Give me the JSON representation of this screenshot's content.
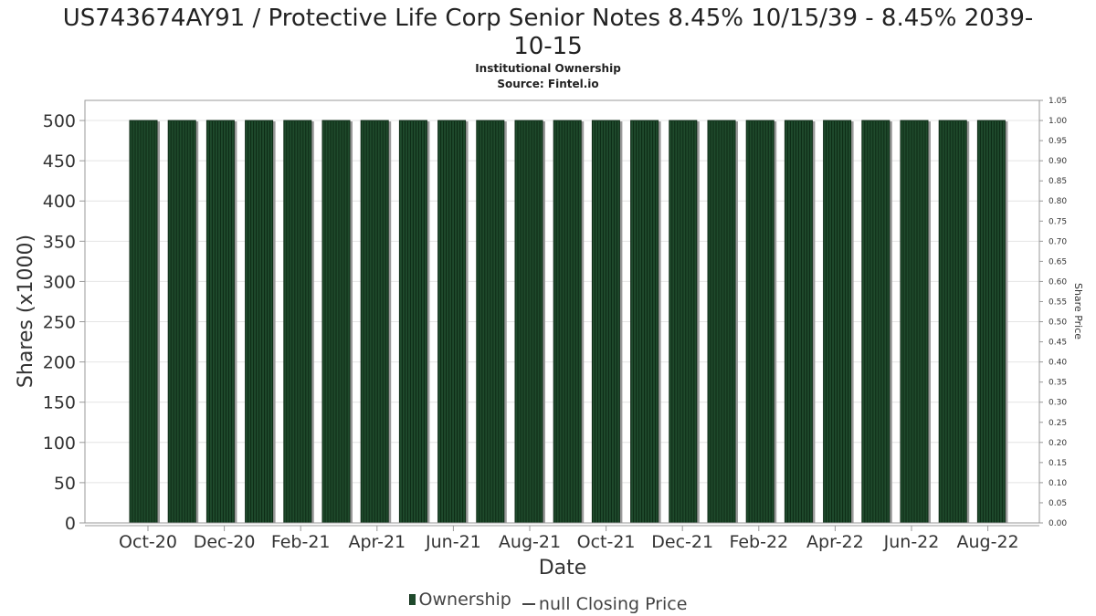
{
  "chart_data": {
    "type": "bar",
    "title": "US743674AY91 / Protective Life Corp Senior Notes 8.45% 10/15/39 - 8.45% 2039-10-15",
    "subtitle": "Institutional Ownership",
    "source": "Source: Fintel.io",
    "xlabel": "Date",
    "ylabel": "Shares (x1000)",
    "y2label": "Share Price",
    "ylim": [
      0,
      525
    ],
    "y2lim": [
      0,
      1.05
    ],
    "yticks": [
      "0",
      "50",
      "100",
      "150",
      "200",
      "250",
      "300",
      "350",
      "400",
      "450",
      "500"
    ],
    "y2ticks": [
      "0.00",
      "0.05",
      "0.10",
      "0.15",
      "0.20",
      "0.25",
      "0.30",
      "0.35",
      "0.40",
      "0.45",
      "0.50",
      "0.55",
      "0.60",
      "0.65",
      "0.70",
      "0.75",
      "0.80",
      "0.85",
      "0.90",
      "0.95",
      "1.00",
      "1.05"
    ],
    "xtick_labels": [
      "Oct-20",
      "Dec-20",
      "Feb-21",
      "Apr-21",
      "Jun-21",
      "Aug-21",
      "Oct-21",
      "Dec-21",
      "Feb-22",
      "Apr-22",
      "Jun-22",
      "Aug-22"
    ],
    "series": [
      {
        "name": "Ownership",
        "values": [
          500,
          500,
          500,
          500,
          500,
          500,
          500,
          500,
          500,
          500,
          500,
          500,
          500,
          500,
          500,
          500,
          500,
          500,
          500,
          500,
          500,
          500,
          500
        ]
      }
    ],
    "colors": {
      "bar": "#1f4a2c",
      "bar_stripe": "#0d2a15",
      "bar_shadow": "#9a9a9a",
      "grid": "#e4e4e4",
      "axis": "#999999"
    },
    "grid": true,
    "legend_position": "bottom-center"
  },
  "legend": {
    "ownership_label": "Ownership",
    "price_label": "null Closing Price"
  }
}
